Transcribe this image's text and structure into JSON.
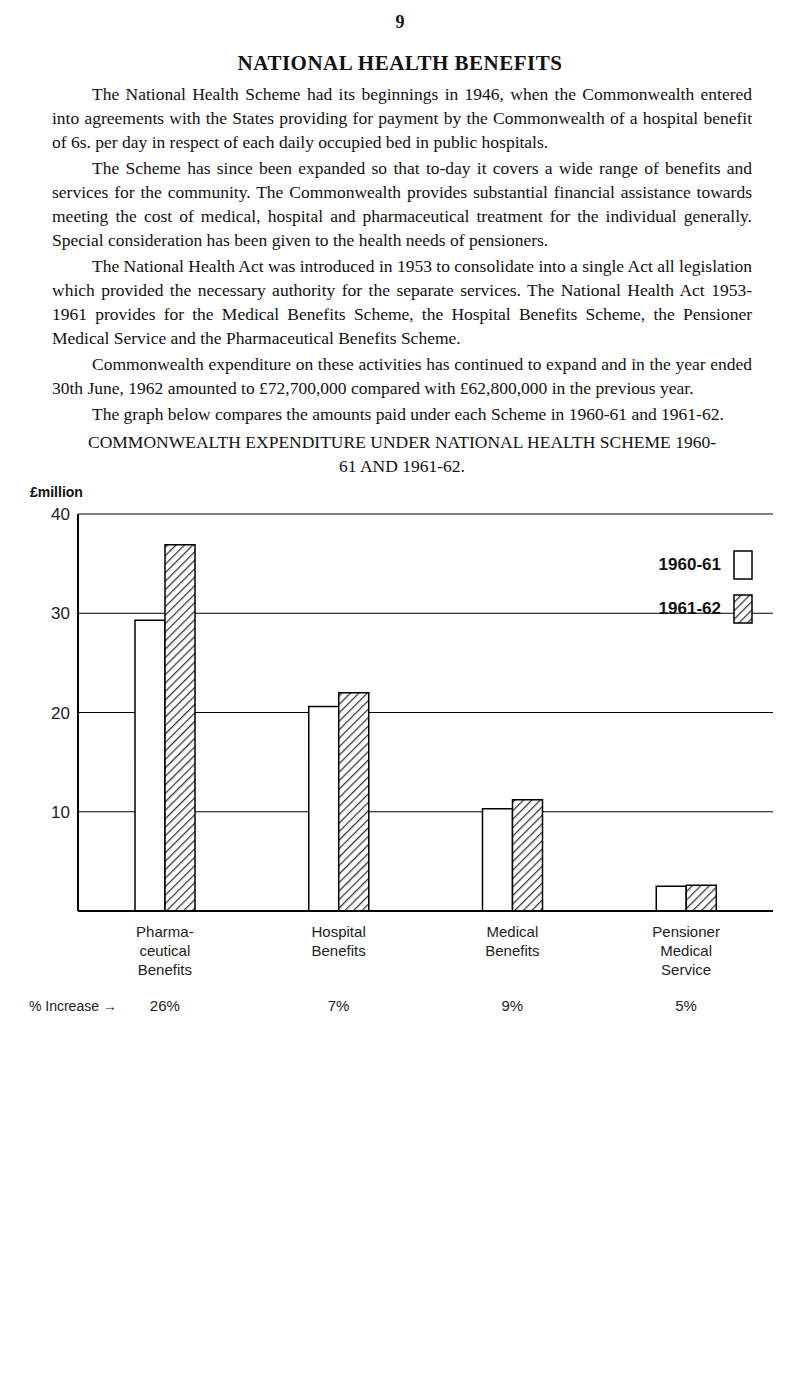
{
  "page_number": "9",
  "heading": "NATIONAL HEALTH BENEFITS",
  "paragraphs": [
    "The National Health Scheme had its beginnings in 1946, when the Commonwealth entered into agreements with the States providing for payment by the Commonwealth of a hospital benefit of 6s. per day in respect of each daily occupied bed in public hospitals.",
    "The Scheme has since been expanded so that to-day it covers a wide range of benefits and services for the community. The Commonwealth provides substantial financial assistance towards meeting the cost of medical, hospital and pharmaceutical treatment for the individual generally. Special consideration has been given to the health needs of pensioners.",
    "The National Health Act was introduced in 1953 to consolidate into a single Act all legislation which provided the necessary authority for the separate services. The National Health Act 1953-1961 provides for the Medical Benefits Scheme, the Hospital Benefits Scheme, the Pensioner Medical Service and the Pharmaceutical Benefits Scheme.",
    "Commonwealth expenditure on these activities has continued to expand and in the year ended 30th June, 1962 amounted to £72,700,000 compared with £62,800,000 in the previous year.",
    "The graph below compares the amounts paid under each Scheme in 1960-61 and 1961-62."
  ],
  "chart_data": {
    "type": "bar",
    "title": "COMMONWEALTH EXPENDITURE UNDER NATIONAL HEALTH SCHEME 1960-61 AND 1961-62.",
    "y_label": "£million",
    "categories": [
      "Pharma-\nceutical\nBenefits",
      "Hospital\nBenefits",
      "Medical\nBenefits",
      "Pensioner\nMedical\nService"
    ],
    "series": [
      {
        "name": "1960-61",
        "color": "#ffffff",
        "values": [
          29.3,
          20.6,
          10.3,
          2.5
        ]
      },
      {
        "name": "1961-62",
        "color": "#333333",
        "values": [
          36.9,
          22.0,
          11.2,
          2.6
        ]
      }
    ],
    "ylim": [
      0,
      40
    ],
    "yticks": [
      10,
      20,
      30,
      40
    ],
    "grid": true,
    "legend": "top-right",
    "increase": {
      "label": "% Increase →",
      "values": [
        26,
        7,
        9,
        5
      ],
      "value_labels": [
        "26%",
        "7%",
        "9%",
        "5%"
      ]
    }
  }
}
